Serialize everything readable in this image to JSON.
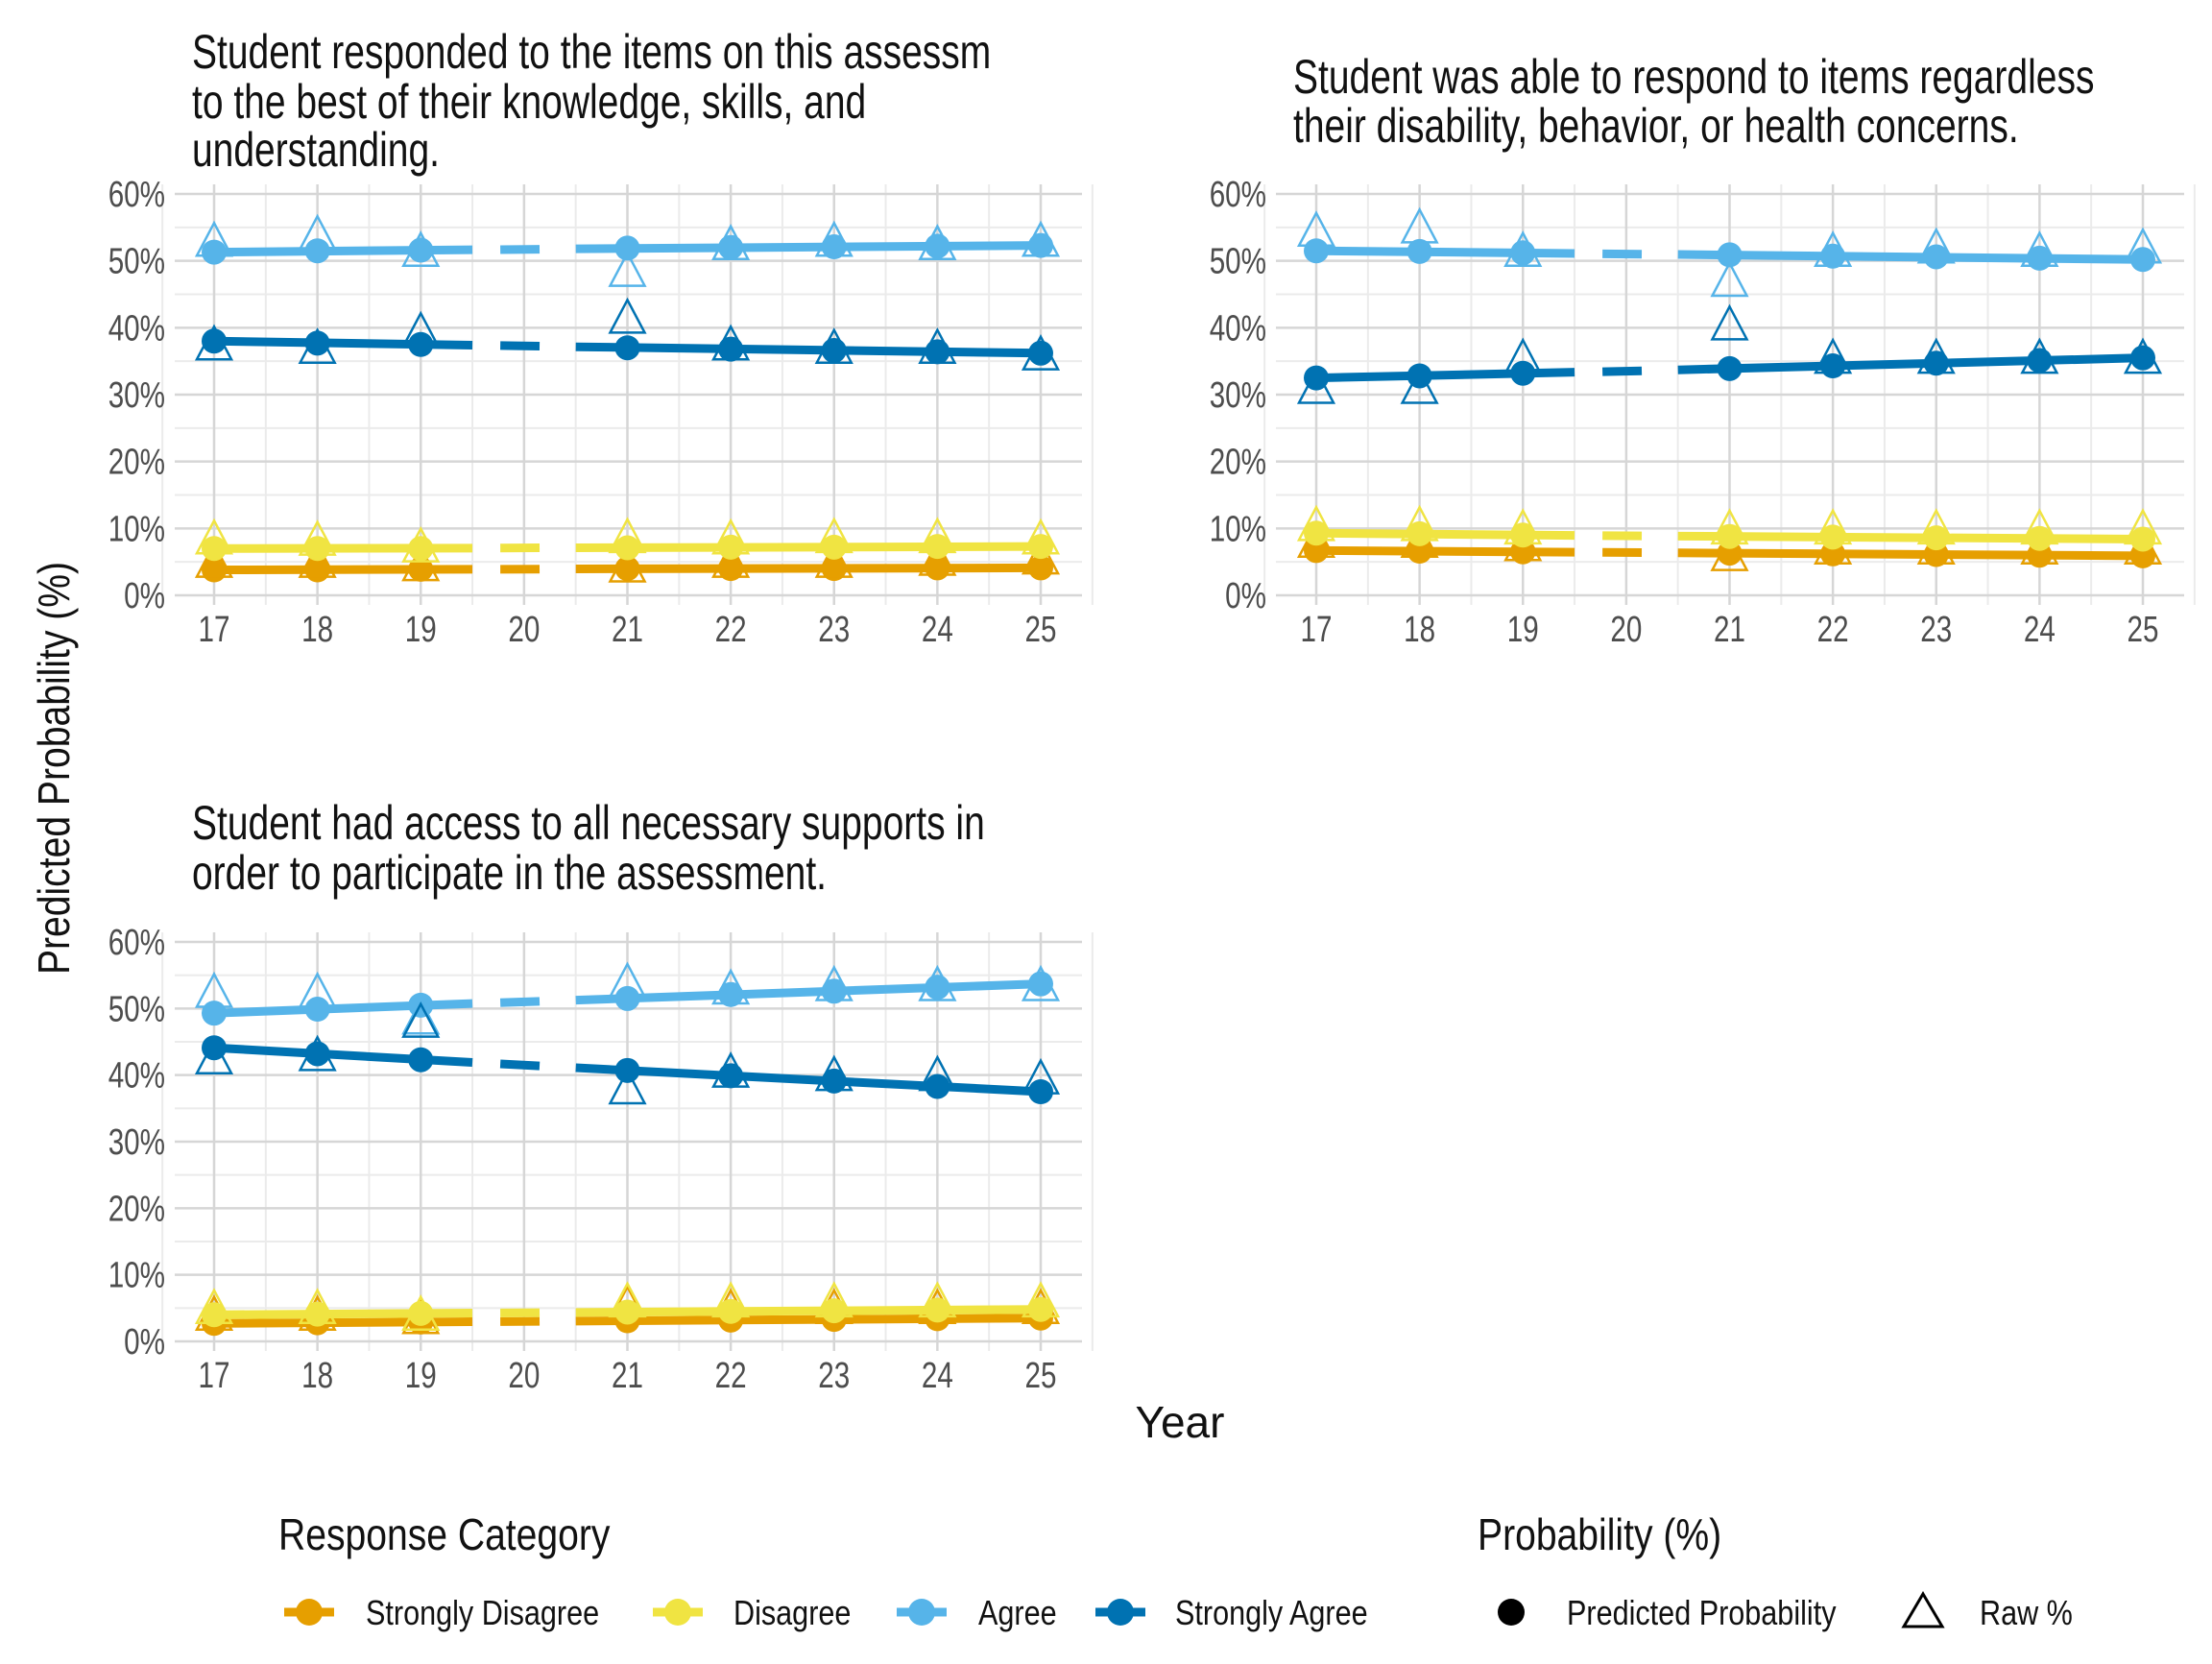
{
  "colors": {
    "Strongly Disagree": "#E69F00",
    "Disagree": "#F0E442",
    "Agree": "#56B4E9",
    "Strongly Agree": "#0072B2"
  },
  "chart_data": [
    {
      "type": "line",
      "title_lines": [
        "Student responded to the items on this assessm",
        "to the best of their knowledge, skills, and",
        "understanding."
      ],
      "x": [
        17,
        18,
        19,
        20,
        21,
        22,
        23,
        24,
        25
      ],
      "x_tick_labels": [
        "17",
        "18",
        "19",
        "20",
        "21",
        "22",
        "23",
        "24",
        "25"
      ],
      "y_tick_labels": [
        "0%",
        "10%",
        "20%",
        "30%",
        "40%",
        "50%",
        "60%"
      ],
      "ylim": [
        0,
        60
      ],
      "grid": true,
      "series": [
        {
          "name": "Strongly Disagree",
          "predicted": [
            3.8,
            3.8,
            3.9,
            3.9,
            4.0,
            4.0,
            4.0,
            4.1,
            4.1
          ],
          "raw": [
            4.5,
            4.5,
            4.0,
            null,
            3.8,
            4.5,
            4.5,
            4.8,
            5.0
          ]
        },
        {
          "name": "Disagree",
          "predicted": [
            7.0,
            7.0,
            7.0,
            7.1,
            7.1,
            7.2,
            7.2,
            7.3,
            7.3
          ],
          "raw": [
            8.0,
            7.8,
            6.8,
            null,
            8.2,
            8.0,
            8.2,
            8.2,
            8.0
          ]
        },
        {
          "name": "Agree",
          "predicted": [
            51.3,
            51.5,
            51.6,
            51.7,
            51.9,
            52.0,
            52.1,
            52.2,
            52.3
          ],
          "raw": [
            52.5,
            53.5,
            51.0,
            null,
            48.0,
            52.0,
            52.5,
            52.0,
            52.5
          ]
        },
        {
          "name": "Strongly Agree",
          "predicted": [
            38.0,
            37.7,
            37.5,
            37.3,
            37.0,
            36.8,
            36.6,
            36.4,
            36.2
          ],
          "raw": [
            37.0,
            36.5,
            39.0,
            null,
            41.0,
            37.0,
            36.5,
            36.5,
            35.5
          ]
        }
      ]
    },
    {
      "type": "line",
      "title_lines": [
        "Student was able to respond to items regardless",
        "their disability, behavior, or health concerns."
      ],
      "x": [
        17,
        18,
        19,
        20,
        21,
        22,
        23,
        24,
        25
      ],
      "x_tick_labels": [
        "17",
        "18",
        "19",
        "20",
        "21",
        "22",
        "23",
        "24",
        "25"
      ],
      "y_tick_labels": [
        "0%",
        "10%",
        "20%",
        "30%",
        "40%",
        "50%",
        "60%"
      ],
      "ylim": [
        0,
        60
      ],
      "grid": true,
      "series": [
        {
          "name": "Strongly Disagree",
          "predicted": [
            6.7,
            6.6,
            6.5,
            6.4,
            6.3,
            6.2,
            6.1,
            6.0,
            5.9
          ],
          "raw": [
            7.5,
            7.5,
            7.0,
            null,
            5.5,
            6.5,
            6.5,
            6.5,
            6.5
          ]
        },
        {
          "name": "Disagree",
          "predicted": [
            9.3,
            9.2,
            9.0,
            8.9,
            8.8,
            8.7,
            8.6,
            8.5,
            8.4
          ],
          "raw": [
            10.0,
            10.0,
            9.5,
            null,
            9.5,
            9.5,
            9.5,
            9.5,
            9.5
          ]
        },
        {
          "name": "Agree",
          "predicted": [
            51.5,
            51.4,
            51.2,
            51.0,
            50.9,
            50.7,
            50.6,
            50.4,
            50.2
          ],
          "raw": [
            54.0,
            54.5,
            51.0,
            null,
            46.5,
            51.0,
            51.5,
            51.0,
            51.5
          ]
        },
        {
          "name": "Strongly Agree",
          "predicted": [
            32.5,
            32.8,
            33.2,
            33.5,
            33.9,
            34.3,
            34.7,
            35.1,
            35.5
          ],
          "raw": [
            30.5,
            30.5,
            35.0,
            null,
            40.0,
            35.0,
            35.0,
            35.0,
            35.0
          ]
        }
      ]
    },
    {
      "type": "line",
      "title_lines": [
        "Student had access to all necessary supports in",
        "order to participate in the assessment."
      ],
      "x": [
        17,
        18,
        19,
        20,
        21,
        22,
        23,
        24,
        25
      ],
      "x_tick_labels": [
        "17",
        "18",
        "19",
        "20",
        "21",
        "22",
        "23",
        "24",
        "25"
      ],
      "y_tick_labels": [
        "0%",
        "10%",
        "20%",
        "30%",
        "40%",
        "50%",
        "60%"
      ],
      "ylim": [
        0,
        60
      ],
      "grid": true,
      "series": [
        {
          "name": "Strongly Disagree",
          "predicted": [
            2.7,
            2.8,
            2.9,
            3.0,
            3.1,
            3.2,
            3.3,
            3.4,
            3.5
          ],
          "raw": [
            3.5,
            3.5,
            3.0,
            null,
            5.0,
            4.5,
            4.5,
            4.5,
            4.5
          ]
        },
        {
          "name": "Disagree",
          "predicted": [
            4.0,
            4.1,
            4.2,
            4.3,
            4.4,
            4.5,
            4.6,
            4.7,
            4.8
          ],
          "raw": [
            4.5,
            4.5,
            3.5,
            null,
            5.5,
            5.5,
            5.5,
            5.5,
            5.5
          ]
        },
        {
          "name": "Agree",
          "predicted": [
            49.3,
            49.9,
            50.5,
            51.0,
            51.5,
            52.1,
            52.6,
            53.2,
            53.7
          ],
          "raw": [
            52.0,
            52.0,
            48.0,
            null,
            53.5,
            52.5,
            53.0,
            53.0,
            53.0
          ]
        },
        {
          "name": "Strongly Agree",
          "predicted": [
            44.1,
            43.2,
            42.3,
            41.5,
            40.7,
            39.9,
            39.1,
            38.3,
            37.5
          ],
          "raw": [
            42.0,
            42.5,
            47.5,
            null,
            37.5,
            40.0,
            39.5,
            39.5,
            39.0
          ]
        }
      ]
    }
  ],
  "axes": {
    "xlabel": "Year",
    "ylabel": "Predicted Probability (%)"
  },
  "legend": {
    "response_title": "Response Category",
    "response_items": [
      "Strongly Disagree",
      "Disagree",
      "Agree",
      "Strongly Agree"
    ],
    "probability_title": "Probability (%)",
    "probability_items": [
      {
        "label": "Predicted Probability",
        "shape": "filled-circle"
      },
      {
        "label": "Raw %",
        "shape": "open-triangle"
      }
    ],
    "placement": "bottom"
  }
}
